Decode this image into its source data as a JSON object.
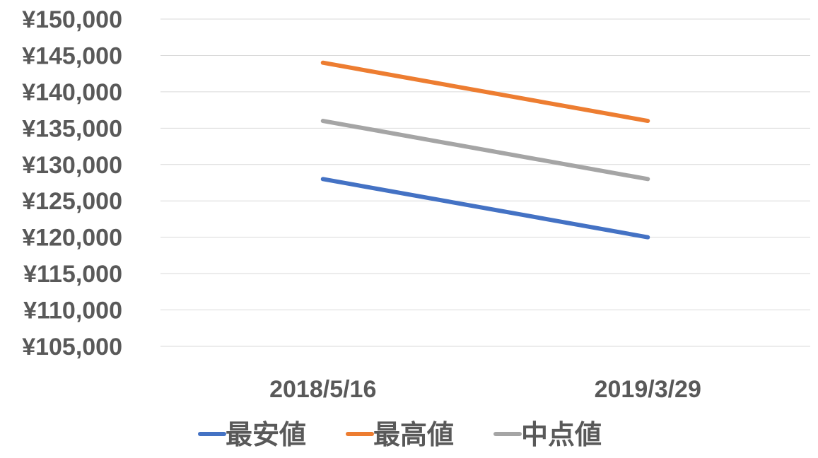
{
  "chart_data": {
    "type": "line",
    "categories": [
      "2018/5/16",
      "2019/3/29"
    ],
    "series": [
      {
        "name": "最安値",
        "values": [
          128000,
          120000
        ],
        "color": "#4472C4"
      },
      {
        "name": "最高値",
        "values": [
          144000,
          136000
        ],
        "color": "#ED7D31"
      },
      {
        "name": "中点値",
        "values": [
          136000,
          128000
        ],
        "color": "#A5A5A5"
      }
    ],
    "ylim": [
      105000,
      150000
    ],
    "yticks": [
      150000,
      145000,
      140000,
      135000,
      130000,
      125000,
      120000,
      115000,
      110000,
      105000
    ],
    "ytick_labels": [
      "¥150,000",
      "¥145,000",
      "¥140,000",
      "¥135,000",
      "¥130,000",
      "¥125,000",
      "¥120,000",
      "¥115,000",
      "¥110,000",
      "¥105,000"
    ],
    "grid": true,
    "legend_position": "bottom",
    "title": "",
    "xlabel": "",
    "ylabel": ""
  }
}
